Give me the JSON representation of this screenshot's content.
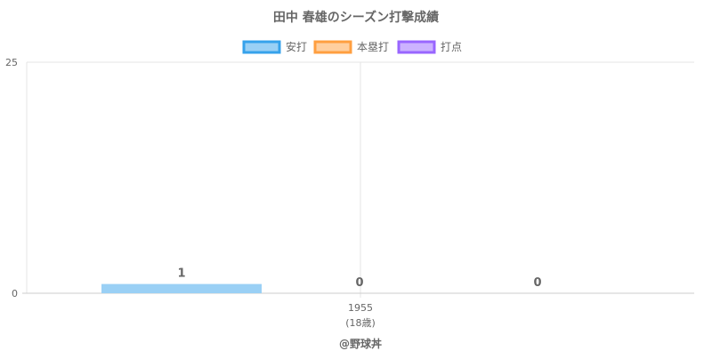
{
  "chart_data": {
    "type": "bar",
    "title": "田中 春雄のシーズン打撃成績",
    "categories": [
      "1955"
    ],
    "category_sublabels": [
      "(18歳)"
    ],
    "series": [
      {
        "name": "安打",
        "values": [
          1
        ],
        "color": "#9ad0f5",
        "border": "#36a2eb"
      },
      {
        "name": "本塁打",
        "values": [
          0
        ],
        "color": "#ffcf9f",
        "border": "#ff9f40"
      },
      {
        "name": "打点",
        "values": [
          0
        ],
        "color": "#ccb2ff",
        "border": "#9966ff"
      }
    ],
    "ylim": [
      0,
      25
    ],
    "yticks": [
      "0",
      "25"
    ],
    "grid": true,
    "legend": "top",
    "data_labels": [
      "1",
      "0",
      "0"
    ],
    "credit": "@野球丼"
  }
}
